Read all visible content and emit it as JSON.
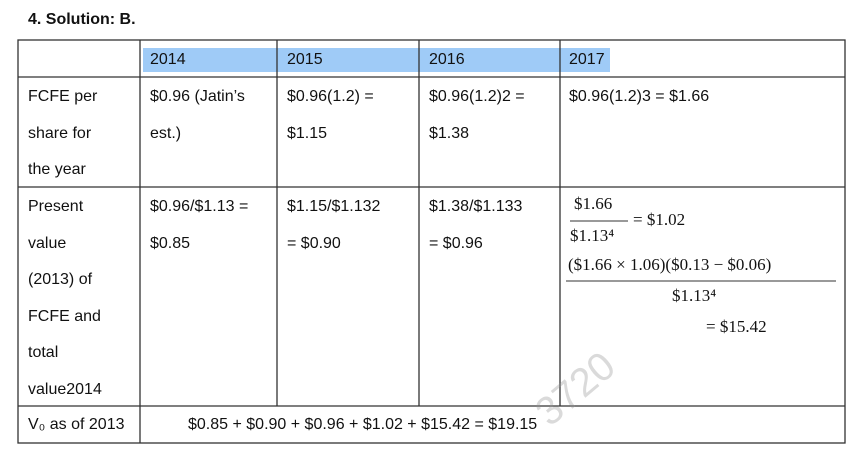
{
  "heading": "4. Solution: B.",
  "table": {
    "header": [
      "2014",
      "2015",
      "2016",
      "2017"
    ],
    "rows": [
      {
        "label": [
          "FCFE per",
          "share for",
          "the year"
        ],
        "cells": [
          [
            "$0.96 (Jatin’s",
            "est.)"
          ],
          [
            "$0.96(1.2) =",
            "$1.15"
          ],
          [
            "$0.96(1.2)2 =",
            "$1.38"
          ],
          [
            "$0.96(1.2)3 = $1.66"
          ]
        ]
      },
      {
        "label": [
          "Present",
          "value",
          "(2013) of",
          "FCFE and",
          "total",
          "value2014"
        ],
        "cells": [
          [
            "$0.96/$1.13 =",
            "$0.85"
          ],
          [
            "$1.15/$1.132",
            "= $0.90"
          ],
          [
            "$1.38/$1.133",
            "= $0.96"
          ]
        ],
        "math": {
          "fraction1": {
            "num": "$1.66",
            "den": "$1.13⁴",
            "result": "= $1.02"
          },
          "fraction2": {
            "num": "($1.66 × 1.06)($0.13 − $0.06)",
            "den": "$1.13⁴"
          },
          "result": "= $15.42"
        }
      }
    ],
    "total": {
      "label": "V₀ as of 2013",
      "value": "$0.85 + $0.90 + $0.96 + $1.02 + $15.42 = $19.15"
    }
  },
  "watermark": "3720"
}
